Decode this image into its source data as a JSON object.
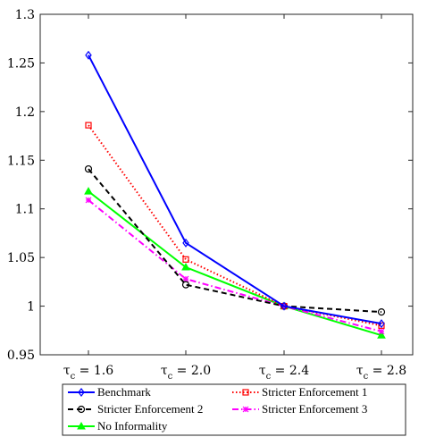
{
  "chart_data": {
    "type": "line",
    "categories": [
      "τ_c = 1.6",
      "τ_c = 2.0",
      "τ_c = 2.4",
      "τ_c = 2.8"
    ],
    "category_parts": [
      {
        "sym": "τ",
        "sub": "c",
        "rest": " = 1.6"
      },
      {
        "sym": "τ",
        "sub": "c",
        "rest": " = 2.0"
      },
      {
        "sym": "τ",
        "sub": "c",
        "rest": " = 2.4"
      },
      {
        "sym": "τ",
        "sub": "c",
        "rest": " = 2.8"
      }
    ],
    "ylim": [
      0.95,
      1.3
    ],
    "yticks": [
      0.95,
      1,
      1.05,
      1.1,
      1.15,
      1.2,
      1.25,
      1.3
    ],
    "ytick_labels": [
      "0.95",
      "1",
      "1.05",
      "1.1",
      "1.15",
      "1.2",
      "1.25",
      "1.3"
    ],
    "title": "",
    "xlabel": "",
    "ylabel": "",
    "grid": false,
    "legend_position": "bottom-outside",
    "series": [
      {
        "name": "Benchmark",
        "values": [
          1.258,
          1.065,
          1.0,
          0.982
        ],
        "color": "#0000ff",
        "dash": "solid",
        "marker": "diamond"
      },
      {
        "name": "Stricter Enforcement 1",
        "values": [
          1.186,
          1.048,
          1.0,
          0.98
        ],
        "color": "#ff0000",
        "dash": "dotted",
        "marker": "square"
      },
      {
        "name": "Stricter Enforcement 2",
        "values": [
          1.141,
          1.022,
          1.0,
          0.994
        ],
        "color": "#000000",
        "dash": "dashed",
        "marker": "circle"
      },
      {
        "name": "Stricter Enforcement 3",
        "values": [
          1.109,
          1.028,
          1.0,
          0.974
        ],
        "color": "#ff00ff",
        "dash": "dashdot",
        "marker": "star"
      },
      {
        "name": "No Informality",
        "values": [
          1.118,
          1.04,
          1.0,
          0.97
        ],
        "color": "#00ff00",
        "dash": "solid",
        "marker": "triangle"
      }
    ]
  }
}
